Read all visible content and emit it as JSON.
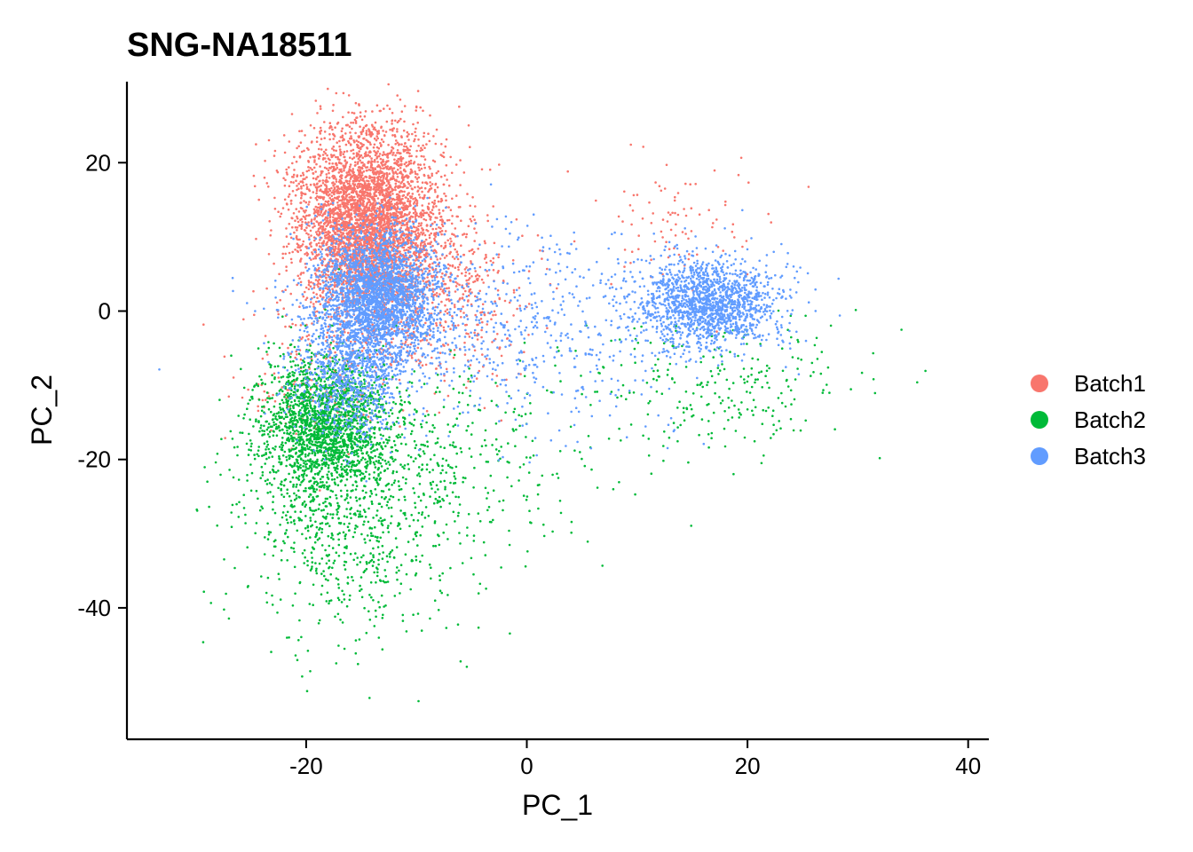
{
  "chart_data": {
    "type": "scatter",
    "title": "SNG-NA18511",
    "xlabel": "PC_1",
    "ylabel": "PC_2",
    "xlim": [
      -36,
      42
    ],
    "ylim": [
      -58,
      31
    ],
    "xticks": [
      -20,
      0,
      20,
      40
    ],
    "yticks": [
      -40,
      -20,
      0,
      20
    ],
    "grid": false,
    "legend_position": "right",
    "series": [
      {
        "name": "Batch1",
        "color": "#F8766D",
        "clusters": [
          {
            "cx": -14.5,
            "cy": 12,
            "sx": 3.2,
            "sy": 6.5,
            "n": 4200
          },
          {
            "cx": -8,
            "cy": 2,
            "sx": 4,
            "sy": 6,
            "n": 500
          },
          {
            "cx": 14,
            "cy": 12,
            "sx": 4,
            "sy": 4,
            "n": 90
          },
          {
            "cx": -18,
            "cy": -8,
            "sx": 4,
            "sy": 5,
            "n": 200
          }
        ]
      },
      {
        "name": "Batch2",
        "color": "#00BA38",
        "clusters": [
          {
            "cx": -18.5,
            "cy": -15,
            "sx": 2.8,
            "sy": 4.5,
            "n": 1800
          },
          {
            "cx": -16,
            "cy": -27,
            "sx": 5,
            "sy": 9,
            "n": 900
          },
          {
            "cx": -8,
            "cy": -20,
            "sx": 8,
            "sy": 7,
            "n": 350
          },
          {
            "cx": 18,
            "cy": -10,
            "sx": 6,
            "sy": 5,
            "n": 250
          }
        ]
      },
      {
        "name": "Batch3",
        "color": "#619CFF",
        "clusters": [
          {
            "cx": -13.5,
            "cy": 2,
            "sx": 2.8,
            "sy": 4.5,
            "n": 2600
          },
          {
            "cx": -16,
            "cy": -9,
            "sx": 2.5,
            "sy": 4,
            "n": 700
          },
          {
            "cx": 16.5,
            "cy": 1,
            "sx": 3.2,
            "sy": 3,
            "n": 1600
          },
          {
            "cx": -2,
            "cy": -3,
            "sx": 9,
            "sy": 7,
            "n": 700
          }
        ]
      }
    ]
  }
}
